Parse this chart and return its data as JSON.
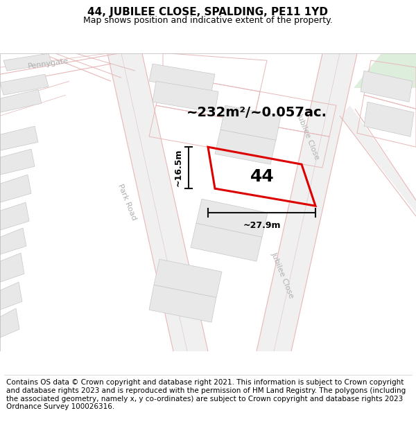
{
  "title": "44, JUBILEE CLOSE, SPALDING, PE11 1YD",
  "subtitle": "Map shows position and indicative extent of the property.",
  "footer": "Contains OS data © Crown copyright and database right 2021. This information is subject to Crown copyright and database rights 2023 and is reproduced with the permission of HM Land Registry. The polygons (including the associated geometry, namely x, y co-ordinates) are subject to Crown copyright and database rights 2023 Ordnance Survey 100026316.",
  "area_label": "~232m²/~0.057ac.",
  "width_label": "~27.9m",
  "height_label": "~16.5m",
  "property_number": "44",
  "map_bg": "#ffffff",
  "road_outline_color": "#e8b8b8",
  "building_face": "#e8e8e8",
  "building_edge": "#c8c8c8",
  "highlight_color": "#dd0000",
  "dim_line_color": "#111111",
  "road_label_color": "#b0b0b0",
  "green_area": "#ddeedd",
  "title_fontsize": 11,
  "subtitle_fontsize": 9,
  "footer_fontsize": 7.5,
  "area_fontsize": 14,
  "prop_num_fontsize": 18
}
